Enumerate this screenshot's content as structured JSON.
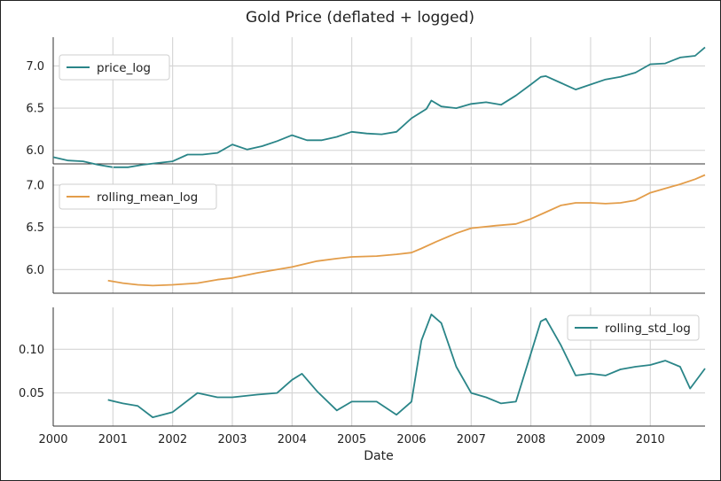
{
  "chart_data": [
    {
      "type": "line",
      "title": "Gold Price (deflated + logged)",
      "xlabel": "Date",
      "series": [
        {
          "name": "price_log",
          "color": "#2a8588",
          "x": [
            "2000-01",
            "2000-04",
            "2000-07",
            "2000-10",
            "2001-01",
            "2001-04",
            "2001-07",
            "2001-10",
            "2002-01",
            "2002-04",
            "2002-07",
            "2002-10",
            "2003-01",
            "2003-04",
            "2003-07",
            "2003-10",
            "2004-01",
            "2004-04",
            "2004-07",
            "2004-10",
            "2005-01",
            "2005-04",
            "2005-07",
            "2005-10",
            "2006-01",
            "2006-04",
            "2006-05",
            "2006-07",
            "2006-10",
            "2007-01",
            "2007-04",
            "2007-07",
            "2007-10",
            "2008-01",
            "2008-03",
            "2008-04",
            "2008-07",
            "2008-10",
            "2009-01",
            "2009-04",
            "2009-07",
            "2009-10",
            "2010-01",
            "2010-04",
            "2010-07",
            "2010-10",
            "2010-12"
          ],
          "values": [
            5.92,
            5.88,
            5.87,
            5.83,
            5.8,
            5.8,
            5.83,
            5.85,
            5.87,
            5.95,
            5.95,
            5.97,
            6.07,
            6.01,
            6.05,
            6.11,
            6.18,
            6.12,
            6.12,
            6.16,
            6.22,
            6.2,
            6.19,
            6.22,
            6.38,
            6.49,
            6.59,
            6.52,
            6.5,
            6.55,
            6.57,
            6.54,
            6.65,
            6.78,
            6.87,
            6.88,
            6.8,
            6.72,
            6.78,
            6.84,
            6.87,
            6.92,
            7.02,
            7.03,
            7.1,
            7.12,
            7.22
          ],
          "ylim": [
            5.84,
            7.34
          ],
          "yticks": [
            6.0,
            6.5,
            7.0
          ]
        }
      ]
    },
    {
      "type": "line",
      "series": [
        {
          "name": "rolling_mean_log",
          "color": "#e39d4a",
          "x": [
            "2000-12",
            "2001-03",
            "2001-06",
            "2001-09",
            "2002-01",
            "2002-06",
            "2002-10",
            "2003-01",
            "2003-06",
            "2003-10",
            "2004-01",
            "2004-06",
            "2004-10",
            "2005-01",
            "2005-06",
            "2005-10",
            "2006-01",
            "2006-03",
            "2006-06",
            "2006-10",
            "2007-01",
            "2007-06",
            "2007-10",
            "2008-01",
            "2008-04",
            "2008-07",
            "2008-10",
            "2009-01",
            "2009-04",
            "2009-07",
            "2009-10",
            "2010-01",
            "2010-04",
            "2010-07",
            "2010-10",
            "2010-12"
          ],
          "values": [
            5.87,
            5.84,
            5.82,
            5.81,
            5.82,
            5.84,
            5.88,
            5.9,
            5.96,
            6.0,
            6.03,
            6.1,
            6.13,
            6.15,
            6.16,
            6.18,
            6.2,
            6.25,
            6.33,
            6.43,
            6.49,
            6.52,
            6.54,
            6.6,
            6.68,
            6.76,
            6.79,
            6.79,
            6.78,
            6.79,
            6.82,
            6.91,
            6.96,
            7.01,
            7.07,
            7.12
          ],
          "ylim": [
            5.72,
            7.22
          ],
          "yticks": [
            6.0,
            6.5,
            7.0
          ]
        }
      ]
    },
    {
      "type": "line",
      "series": [
        {
          "name": "rolling_std_log",
          "color": "#2a8588",
          "x": [
            "2000-12",
            "2001-03",
            "2001-06",
            "2001-09",
            "2002-01",
            "2002-06",
            "2002-10",
            "2003-01",
            "2003-06",
            "2003-10",
            "2004-01",
            "2004-03",
            "2004-06",
            "2004-10",
            "2005-01",
            "2005-06",
            "2005-10",
            "2006-01",
            "2006-03",
            "2006-05",
            "2006-07",
            "2006-10",
            "2007-01",
            "2007-04",
            "2007-07",
            "2007-10",
            "2008-01",
            "2008-03",
            "2008-04",
            "2008-07",
            "2008-10",
            "2009-01",
            "2009-04",
            "2009-07",
            "2009-10",
            "2010-01",
            "2010-04",
            "2010-07",
            "2010-09",
            "2010-12"
          ],
          "values": [
            0.042,
            0.038,
            0.035,
            0.022,
            0.028,
            0.05,
            0.045,
            0.045,
            0.048,
            0.05,
            0.065,
            0.072,
            0.052,
            0.03,
            0.04,
            0.04,
            0.025,
            0.04,
            0.11,
            0.14,
            0.13,
            0.08,
            0.05,
            0.045,
            0.038,
            0.04,
            0.095,
            0.132,
            0.135,
            0.105,
            0.07,
            0.072,
            0.07,
            0.077,
            0.08,
            0.082,
            0.087,
            0.08,
            0.055,
            0.078
          ],
          "ylim": [
            0.012,
            0.148
          ],
          "yticks": [
            0.05,
            0.1
          ]
        }
      ]
    }
  ],
  "x_axis": {
    "range": [
      "2000-01",
      "2010-12"
    ],
    "ticks": [
      "2000",
      "2001",
      "2002",
      "2003",
      "2004",
      "2005",
      "2006",
      "2007",
      "2008",
      "2009",
      "2010"
    ]
  },
  "legend_position": "top-left"
}
